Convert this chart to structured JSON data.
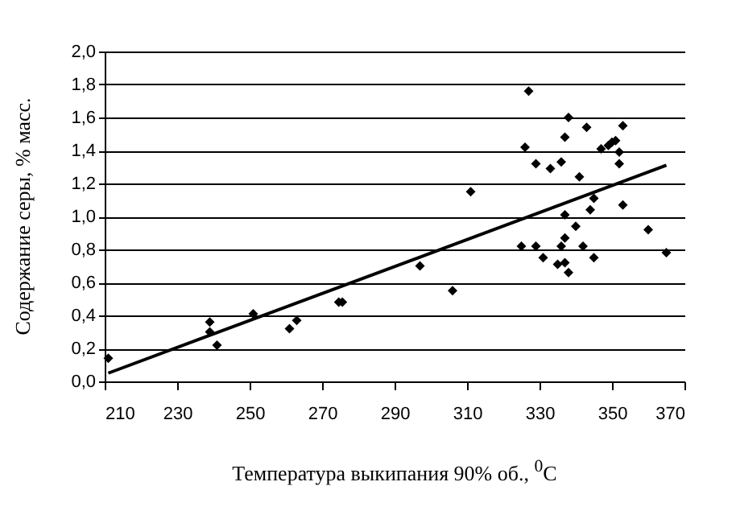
{
  "chart_data": {
    "type": "scatter",
    "xlabel": "Температура выкипания 90% об., $^{0}$C",
    "ylabel": "Содержание серы, % масс.",
    "xlim": [
      210,
      370
    ],
    "xticks": [
      210,
      230,
      250,
      270,
      290,
      310,
      330,
      350,
      370
    ],
    "ylim": [
      0,
      2
    ],
    "yticks": [
      {
        "value": 0,
        "label": "0,0"
      },
      {
        "value": 0.2,
        "label": "0,2"
      },
      {
        "value": 0.4,
        "label": "0,4"
      },
      {
        "value": 0.6,
        "label": "0,6"
      },
      {
        "value": 0.8,
        "label": "0,8"
      },
      {
        "value": 1,
        "label": "1,0"
      },
      {
        "value": 1.2,
        "label": "1,2"
      },
      {
        "value": 1.4,
        "label": "1,4"
      },
      {
        "value": 1.6,
        "label": "1,6"
      },
      {
        "value": 1.8,
        "label": "1,8"
      },
      {
        "value": 2,
        "label": "2,0"
      }
    ],
    "grid": "y",
    "marker": "diamond",
    "series": [
      {
        "type": "scatter",
        "color": "#000000",
        "x": [
          211,
          239,
          239,
          241,
          251,
          261,
          263,
          274.6,
          275.6,
          297,
          306,
          311,
          327,
          338,
          326,
          337,
          343,
          353,
          347,
          349,
          350,
          351,
          352,
          352,
          329,
          333,
          336,
          341,
          345,
          353,
          344,
          337,
          340,
          337,
          360,
          325,
          329,
          336,
          342,
          365,
          331,
          345,
          335,
          337,
          338
        ],
        "values": [
          0.14,
          0.36,
          0.3,
          0.22,
          0.41,
          0.32,
          0.37,
          0.48,
          0.48,
          0.7,
          0.55,
          1.15,
          1.76,
          1.6,
          1.42,
          1.48,
          1.54,
          1.55,
          1.41,
          1.43,
          1.45,
          1.46,
          1.39,
          1.32,
          1.32,
          1.29,
          1.33,
          1.24,
          1.11,
          1.07,
          1.04,
          1.01,
          0.94,
          0.87,
          0.92,
          0.82,
          0.82,
          0.82,
          0.82,
          0.78,
          0.75,
          0.75,
          0.71,
          0.72,
          0.66
        ]
      },
      {
        "type": "line",
        "color": "#000000",
        "marker": "none",
        "x": [
          211,
          365
        ],
        "values": [
          0.05,
          1.31
        ]
      }
    ]
  }
}
